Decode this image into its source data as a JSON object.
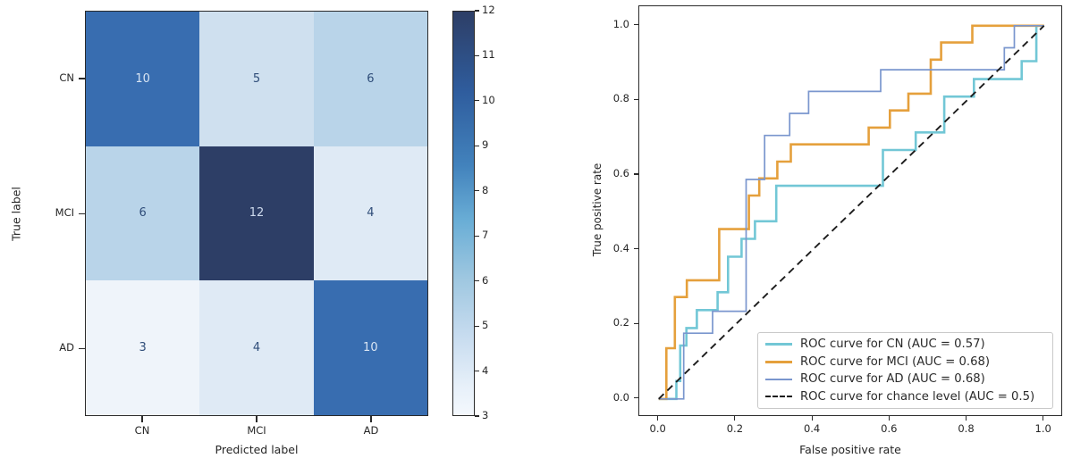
{
  "figure": {
    "left_plot": {
      "ylabel": "True label",
      "xlabel": "Predicted label",
      "classes": [
        "CN",
        "MCI",
        "AD"
      ]
    },
    "right_plot": {
      "ylabel": "True positive rate",
      "xlabel": "False positive rate",
      "x_tick_labels": [
        "0.0",
        "0.2",
        "0.4",
        "0.6",
        "0.8",
        "1.0"
      ],
      "y_tick_labels": [
        "0.0",
        "0.2",
        "0.4",
        "0.6",
        "0.8",
        "1.0"
      ]
    }
  },
  "chart_data": [
    {
      "type": "heatmap",
      "title": "",
      "xlabel": "Predicted label",
      "ylabel": "True label",
      "categories_x": [
        "CN",
        "MCI",
        "AD"
      ],
      "categories_y": [
        "CN",
        "MCI",
        "AD"
      ],
      "matrix": [
        [
          10,
          5,
          6
        ],
        [
          6,
          12,
          4
        ],
        [
          3,
          4,
          10
        ]
      ],
      "colormap": "Blues",
      "vmin": 3,
      "vmax": 12,
      "colorbar_ticks": [
        3,
        4,
        5,
        6,
        7,
        8,
        9,
        10,
        11,
        12
      ],
      "cell_colors": [
        [
          "#386db0",
          "#cfe0ef",
          "#b9d4e9"
        ],
        [
          "#b9d4e9",
          "#2d3e66",
          "#dfeaf5"
        ],
        [
          "#eff4fa",
          "#dfeaf5",
          "#386db0"
        ]
      ],
      "cell_text_colors": [
        [
          "#d9e5f3",
          "#2f4d79",
          "#2f4d79"
        ],
        [
          "#2f4d79",
          "#cdd9ec",
          "#2f4d79"
        ],
        [
          "#2f4d79",
          "#2f4d79",
          "#d9e5f3"
        ]
      ]
    },
    {
      "type": "line",
      "title": "",
      "xlabel": "False positive rate",
      "ylabel": "True positive rate",
      "xlim": [
        -0.05,
        1.05
      ],
      "ylim": [
        -0.05,
        1.05
      ],
      "x_ticks": [
        0.0,
        0.2,
        0.4,
        0.6,
        0.8,
        1.0
      ],
      "y_ticks": [
        0.0,
        0.2,
        0.4,
        0.6,
        0.8,
        1.0
      ],
      "grid": false,
      "legend_position": "lower right",
      "series": [
        {
          "name": "ROC curve for CN (AUC = 0.57)",
          "auc": 0.57,
          "color": "#72c7d6",
          "dash": false,
          "width": 2.6,
          "points": [
            [
              0,
              0
            ],
            [
              0.046,
              0
            ],
            [
              0.046,
              0.048
            ],
            [
              0.056,
              0.048
            ],
            [
              0.056,
              0.143
            ],
            [
              0.072,
              0.143
            ],
            [
              0.072,
              0.19
            ],
            [
              0.099,
              0.19
            ],
            [
              0.099,
              0.238
            ],
            [
              0.153,
              0.238
            ],
            [
              0.153,
              0.286
            ],
            [
              0.18,
              0.286
            ],
            [
              0.18,
              0.381
            ],
            [
              0.215,
              0.381
            ],
            [
              0.215,
              0.429
            ],
            [
              0.25,
              0.429
            ],
            [
              0.25,
              0.476
            ],
            [
              0.305,
              0.476
            ],
            [
              0.305,
              0.571
            ],
            [
              0.582,
              0.571
            ],
            [
              0.582,
              0.667
            ],
            [
              0.667,
              0.667
            ],
            [
              0.667,
              0.714
            ],
            [
              0.741,
              0.714
            ],
            [
              0.741,
              0.81
            ],
            [
              0.818,
              0.81
            ],
            [
              0.818,
              0.857
            ],
            [
              0.942,
              0.857
            ],
            [
              0.942,
              0.905
            ],
            [
              0.98,
              0.905
            ],
            [
              0.98,
              1
            ],
            [
              1,
              1
            ]
          ]
        },
        {
          "name": "ROC curve for MCI (AUC = 0.68)",
          "auc": 0.68,
          "color": "#e5a03c",
          "dash": false,
          "width": 2.6,
          "points": [
            [
              0,
              0
            ],
            [
              0.02,
              0
            ],
            [
              0.02,
              0.136
            ],
            [
              0.042,
              0.136
            ],
            [
              0.042,
              0.273
            ],
            [
              0.073,
              0.273
            ],
            [
              0.073,
              0.318
            ],
            [
              0.157,
              0.318
            ],
            [
              0.157,
              0.455
            ],
            [
              0.234,
              0.455
            ],
            [
              0.234,
              0.545
            ],
            [
              0.261,
              0.545
            ],
            [
              0.261,
              0.591
            ],
            [
              0.308,
              0.591
            ],
            [
              0.308,
              0.636
            ],
            [
              0.343,
              0.636
            ],
            [
              0.343,
              0.682
            ],
            [
              0.545,
              0.682
            ],
            [
              0.545,
              0.727
            ],
            [
              0.6,
              0.727
            ],
            [
              0.6,
              0.773
            ],
            [
              0.648,
              0.773
            ],
            [
              0.648,
              0.818
            ],
            [
              0.706,
              0.818
            ],
            [
              0.706,
              0.909
            ],
            [
              0.733,
              0.909
            ],
            [
              0.733,
              0.955
            ],
            [
              0.814,
              0.955
            ],
            [
              0.814,
              1
            ],
            [
              1,
              1
            ]
          ]
        },
        {
          "name": "ROC curve for AD (AUC = 0.68)",
          "auc": 0.68,
          "color": "#7a96ce",
          "dash": false,
          "width": 1.7,
          "points": [
            [
              0,
              0
            ],
            [
              0.065,
              0
            ],
            [
              0.065,
              0.176
            ],
            [
              0.14,
              0.176
            ],
            [
              0.14,
              0.235
            ],
            [
              0.227,
              0.235
            ],
            [
              0.227,
              0.588
            ],
            [
              0.275,
              0.588
            ],
            [
              0.275,
              0.706
            ],
            [
              0.34,
              0.706
            ],
            [
              0.34,
              0.765
            ],
            [
              0.389,
              0.765
            ],
            [
              0.389,
              0.824
            ],
            [
              0.576,
              0.824
            ],
            [
              0.576,
              0.882
            ],
            [
              0.897,
              0.882
            ],
            [
              0.897,
              0.941
            ],
            [
              0.923,
              0.941
            ],
            [
              0.923,
              1
            ],
            [
              1,
              1
            ]
          ]
        },
        {
          "name": "ROC curve for chance level (AUC = 0.5)",
          "auc": 0.5,
          "color": "#1c1c1c",
          "dash": true,
          "width": 1.9,
          "points": [
            [
              0,
              0
            ],
            [
              1,
              1
            ]
          ]
        }
      ]
    }
  ]
}
